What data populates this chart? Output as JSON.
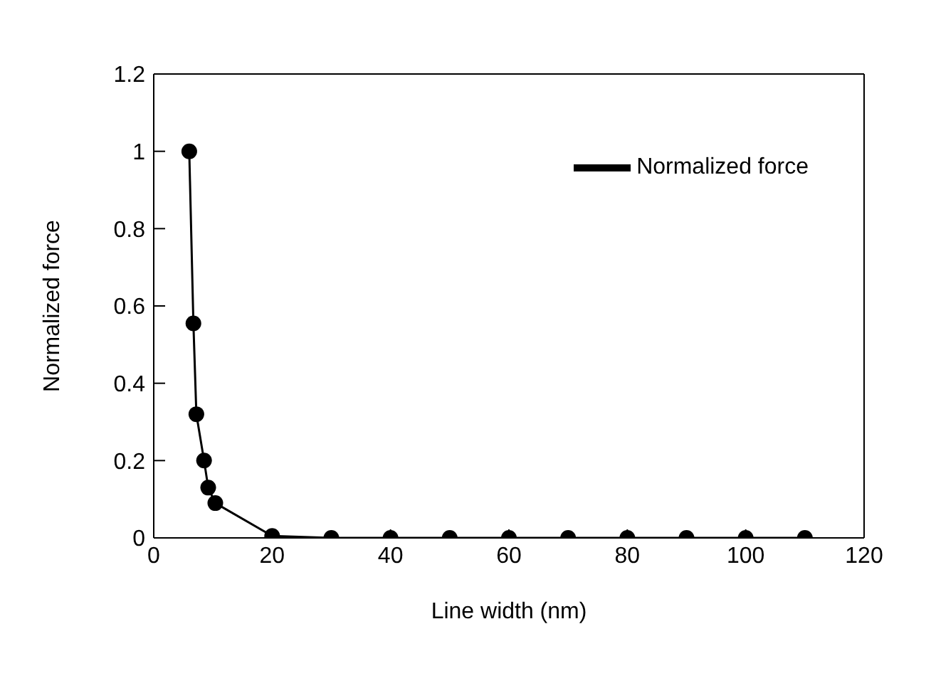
{
  "chart_data": {
    "type": "line",
    "xlabel": "Line width (nm)",
    "ylabel": "Normalized force",
    "series": [
      {
        "name": "Normalized force",
        "color": "#000000",
        "x": [
          6,
          6.7,
          7.2,
          8.5,
          9.2,
          10.4,
          20,
          30,
          40,
          50,
          60,
          70,
          80,
          90,
          100,
          110
        ],
        "values": [
          1,
          0.555,
          0.32,
          0.2,
          0.13,
          0.09,
          0.005,
          0,
          0,
          0,
          0,
          0,
          0,
          0,
          0,
          0
        ]
      }
    ],
    "xlim": [
      0,
      120
    ],
    "xticks": [
      0,
      20,
      40,
      60,
      80,
      100,
      120
    ],
    "ylim": [
      0,
      1.2
    ],
    "yticks": [
      0,
      0.2,
      0.4,
      0.6,
      0.8,
      1,
      1.2
    ],
    "marker": "circle",
    "line_style": "solid",
    "legend": "top right",
    "grid": false
  }
}
